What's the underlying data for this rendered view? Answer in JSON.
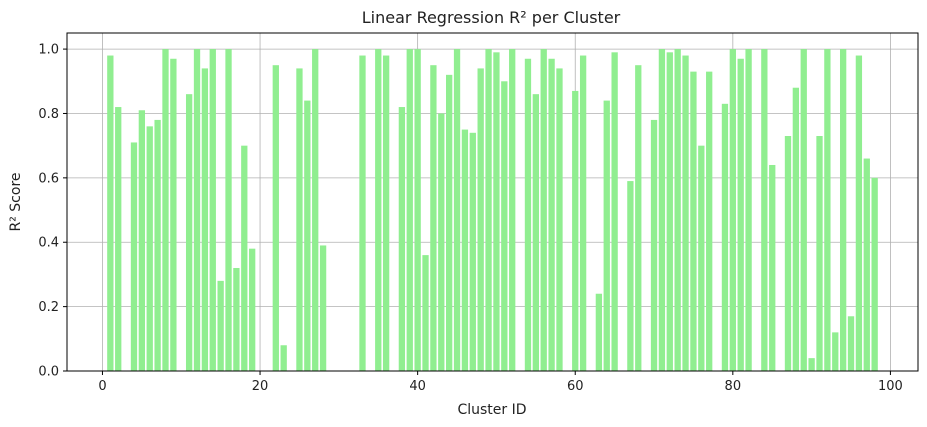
{
  "chart_data": {
    "type": "bar",
    "title": "Linear Regression R² per Cluster",
    "xlabel": "Cluster ID",
    "ylabel": "R² Score",
    "xlim": [
      -4.5,
      103.5
    ],
    "ylim": [
      0.0,
      1.05
    ],
    "xticks": [
      0,
      20,
      40,
      60,
      80,
      100
    ],
    "yticks": [
      0.0,
      0.2,
      0.4,
      0.6,
      0.8,
      1.0
    ],
    "xtick_labels": [
      "0",
      "20",
      "40",
      "60",
      "80",
      "100"
    ],
    "ytick_labels": [
      "0.0",
      "0.2",
      "0.4",
      "0.6",
      "0.8",
      "1.0"
    ],
    "grid": true,
    "bar_color": "#90ee90",
    "bars": [
      {
        "x": 1,
        "y": 0.98
      },
      {
        "x": 2,
        "y": 0.82
      },
      {
        "x": 4,
        "y": 0.71
      },
      {
        "x": 5,
        "y": 0.81
      },
      {
        "x": 6,
        "y": 0.76
      },
      {
        "x": 7,
        "y": 0.78
      },
      {
        "x": 8,
        "y": 1.0
      },
      {
        "x": 9,
        "y": 0.97
      },
      {
        "x": 11,
        "y": 0.86
      },
      {
        "x": 12,
        "y": 1.0
      },
      {
        "x": 13,
        "y": 0.94
      },
      {
        "x": 14,
        "y": 1.0
      },
      {
        "x": 15,
        "y": 0.28
      },
      {
        "x": 16,
        "y": 1.0
      },
      {
        "x": 17,
        "y": 0.32
      },
      {
        "x": 18,
        "y": 0.7
      },
      {
        "x": 19,
        "y": 0.38
      },
      {
        "x": 22,
        "y": 0.95
      },
      {
        "x": 23,
        "y": 0.08
      },
      {
        "x": 25,
        "y": 0.94
      },
      {
        "x": 26,
        "y": 0.84
      },
      {
        "x": 27,
        "y": 1.0
      },
      {
        "x": 28,
        "y": 0.39
      },
      {
        "x": 33,
        "y": 0.98
      },
      {
        "x": 35,
        "y": 1.0
      },
      {
        "x": 36,
        "y": 0.98
      },
      {
        "x": 38,
        "y": 0.82
      },
      {
        "x": 39,
        "y": 1.0
      },
      {
        "x": 40,
        "y": 1.0
      },
      {
        "x": 41,
        "y": 0.36
      },
      {
        "x": 42,
        "y": 0.95
      },
      {
        "x": 43,
        "y": 0.8
      },
      {
        "x": 44,
        "y": 0.92
      },
      {
        "x": 45,
        "y": 1.0
      },
      {
        "x": 46,
        "y": 0.75
      },
      {
        "x": 47,
        "y": 0.74
      },
      {
        "x": 48,
        "y": 0.94
      },
      {
        "x": 49,
        "y": 1.0
      },
      {
        "x": 50,
        "y": 0.99
      },
      {
        "x": 51,
        "y": 0.9
      },
      {
        "x": 52,
        "y": 1.0
      },
      {
        "x": 54,
        "y": 0.97
      },
      {
        "x": 55,
        "y": 0.86
      },
      {
        "x": 56,
        "y": 1.0
      },
      {
        "x": 57,
        "y": 0.97
      },
      {
        "x": 58,
        "y": 0.94
      },
      {
        "x": 60,
        "y": 0.87
      },
      {
        "x": 61,
        "y": 0.98
      },
      {
        "x": 63,
        "y": 0.24
      },
      {
        "x": 64,
        "y": 0.84
      },
      {
        "x": 65,
        "y": 0.99
      },
      {
        "x": 67,
        "y": 0.59
      },
      {
        "x": 68,
        "y": 0.95
      },
      {
        "x": 70,
        "y": 0.78
      },
      {
        "x": 71,
        "y": 1.0
      },
      {
        "x": 72,
        "y": 0.99
      },
      {
        "x": 73,
        "y": 1.0
      },
      {
        "x": 74,
        "y": 0.98
      },
      {
        "x": 75,
        "y": 0.93
      },
      {
        "x": 76,
        "y": 0.7
      },
      {
        "x": 77,
        "y": 0.93
      },
      {
        "x": 79,
        "y": 0.83
      },
      {
        "x": 80,
        "y": 1.0
      },
      {
        "x": 81,
        "y": 0.97
      },
      {
        "x": 82,
        "y": 1.0
      },
      {
        "x": 84,
        "y": 1.0
      },
      {
        "x": 85,
        "y": 0.64
      },
      {
        "x": 87,
        "y": 0.73
      },
      {
        "x": 88,
        "y": 0.88
      },
      {
        "x": 89,
        "y": 1.0
      },
      {
        "x": 90,
        "y": 0.04
      },
      {
        "x": 91,
        "y": 0.73
      },
      {
        "x": 92,
        "y": 1.0
      },
      {
        "x": 93,
        "y": 0.12
      },
      {
        "x": 94,
        "y": 1.0
      },
      {
        "x": 95,
        "y": 0.17
      },
      {
        "x": 96,
        "y": 0.98
      },
      {
        "x": 97,
        "y": 0.66
      },
      {
        "x": 98,
        "y": 0.6
      }
    ]
  }
}
